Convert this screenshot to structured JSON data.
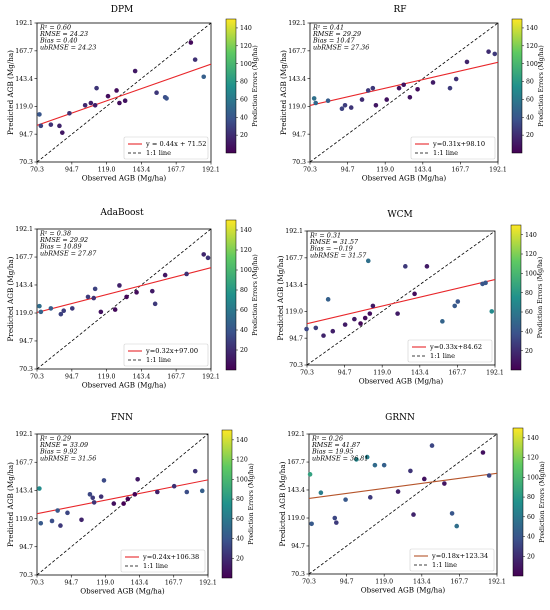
{
  "palette": {
    "fit_line": "#e8262a",
    "fit_line_grnn": "#b5542a",
    "one_to_one": "#000000",
    "colormap": [
      "#440154",
      "#3b528b",
      "#21918c",
      "#5ec962",
      "#fde725"
    ]
  },
  "common": {
    "xlabel": "Observed AGB (Mg/ha)",
    "ylabel": "Predicted AGB (Mg/ha)",
    "ticks": [
      "70.3",
      "94.7",
      "119.0",
      "143.4",
      "167.7",
      "192.1"
    ],
    "tick_values": [
      70.3,
      94.7,
      119.0,
      143.4,
      167.7,
      192.1
    ],
    "colorbar_ticks": [
      "20",
      "40",
      "60",
      "80",
      "100",
      "120",
      "140"
    ],
    "colorbar_tick_values": [
      20,
      40,
      60,
      80,
      100,
      120,
      140
    ],
    "colorbar_label": "Prediction Errors (Mg/ha)",
    "one_to_one_label": "1:1 line"
  },
  "chart_data": [
    {
      "type": "scatter",
      "title": "DPM",
      "stats": [
        "R² = 0.60",
        "RMSE = 24.23",
        "Bias = 0.40",
        "ubRMSE = 24.23"
      ],
      "fit": {
        "slope": 0.44,
        "intercept": 71.52,
        "label": "y = 0.44x + 71.52"
      },
      "xlim": [
        70.3,
        192.1
      ],
      "ylim": [
        70.3,
        192.1
      ],
      "clim": [
        0,
        150
      ],
      "points": [
        {
          "x": 72,
          "y": 112,
          "e": 40
        },
        {
          "x": 73,
          "y": 102,
          "e": 30
        },
        {
          "x": 80,
          "y": 103,
          "e": 22
        },
        {
          "x": 86,
          "y": 102,
          "e": 16
        },
        {
          "x": 88,
          "y": 96,
          "e": 10
        },
        {
          "x": 93,
          "y": 113,
          "e": 22
        },
        {
          "x": 104,
          "y": 120,
          "e": 18
        },
        {
          "x": 108,
          "y": 122,
          "e": 14
        },
        {
          "x": 111,
          "y": 120,
          "e": 12
        },
        {
          "x": 112,
          "y": 135,
          "e": 24
        },
        {
          "x": 120,
          "y": 128,
          "e": 6
        },
        {
          "x": 126,
          "y": 133,
          "e": 6
        },
        {
          "x": 128,
          "y": 122,
          "e": 6
        },
        {
          "x": 132,
          "y": 124,
          "e": 8
        },
        {
          "x": 139,
          "y": 150,
          "e": 11
        },
        {
          "x": 154,
          "y": 131,
          "e": 25
        },
        {
          "x": 160,
          "y": 127,
          "e": 36
        },
        {
          "x": 161,
          "y": 126,
          "e": 38
        },
        {
          "x": 178,
          "y": 175,
          "e": 4
        },
        {
          "x": 181,
          "y": 160,
          "e": 22
        },
        {
          "x": 187,
          "y": 145,
          "e": 45
        }
      ]
    },
    {
      "type": "scatter",
      "title": "RF",
      "stats": [
        "R² = 0.41",
        "RMSE = 29.29",
        "Bias = 10.47",
        "ubRMSE = 27.36"
      ],
      "fit": {
        "slope": 0.31,
        "intercept": 98.1,
        "label": "y=0.31x+98.10"
      },
      "xlim": [
        70.3,
        192.1
      ],
      "ylim": [
        70.3,
        192.1
      ],
      "clim": [
        0,
        150
      ],
      "points": [
        {
          "x": 73,
          "y": 126,
          "e": 55
        },
        {
          "x": 74,
          "y": 122,
          "e": 50
        },
        {
          "x": 82,
          "y": 124,
          "e": 44
        },
        {
          "x": 91,
          "y": 117,
          "e": 30
        },
        {
          "x": 93,
          "y": 120,
          "e": 28
        },
        {
          "x": 97,
          "y": 118,
          "e": 24
        },
        {
          "x": 104,
          "y": 125,
          "e": 20
        },
        {
          "x": 108,
          "y": 133,
          "e": 26
        },
        {
          "x": 111,
          "y": 135,
          "e": 25
        },
        {
          "x": 113,
          "y": 120,
          "e": 10
        },
        {
          "x": 120,
          "y": 125,
          "e": 8
        },
        {
          "x": 128,
          "y": 135,
          "e": 8
        },
        {
          "x": 131,
          "y": 138,
          "e": 8
        },
        {
          "x": 135,
          "y": 127,
          "e": 9
        },
        {
          "x": 140,
          "y": 134,
          "e": 6
        },
        {
          "x": 150,
          "y": 140,
          "e": 12
        },
        {
          "x": 161,
          "y": 135,
          "e": 27
        },
        {
          "x": 165,
          "y": 143,
          "e": 22
        },
        {
          "x": 172,
          "y": 158,
          "e": 16
        },
        {
          "x": 186,
          "y": 167,
          "e": 20
        },
        {
          "x": 190,
          "y": 165,
          "e": 26
        }
      ]
    },
    {
      "type": "scatter",
      "title": "AdaBoost",
      "stats": [
        "R² = 0.38",
        "RMSE = 29.92",
        "Bias = 10.89",
        "ubRMSE = 27.87"
      ],
      "fit": {
        "slope": 0.32,
        "intercept": 97.0,
        "label": "y=0.32x+97.00"
      },
      "xlim": [
        70.3,
        192.1
      ],
      "ylim": [
        70.3,
        192.1
      ],
      "clim": [
        0,
        150
      ],
      "points": [
        {
          "x": 72,
          "y": 125,
          "e": 53
        },
        {
          "x": 73,
          "y": 120,
          "e": 48
        },
        {
          "x": 80,
          "y": 123,
          "e": 44
        },
        {
          "x": 87,
          "y": 118,
          "e": 30
        },
        {
          "x": 89,
          "y": 121,
          "e": 28
        },
        {
          "x": 95,
          "y": 123,
          "e": 26
        },
        {
          "x": 106,
          "y": 133,
          "e": 27
        },
        {
          "x": 110,
          "y": 132,
          "e": 22
        },
        {
          "x": 111,
          "y": 140,
          "e": 30
        },
        {
          "x": 115,
          "y": 120,
          "e": 8
        },
        {
          "x": 125,
          "y": 122,
          "e": 4
        },
        {
          "x": 128,
          "y": 143,
          "e": 15
        },
        {
          "x": 133,
          "y": 133,
          "e": 3
        },
        {
          "x": 140,
          "y": 137,
          "e": 5
        },
        {
          "x": 151,
          "y": 138,
          "e": 12
        },
        {
          "x": 153,
          "y": 127,
          "e": 26
        },
        {
          "x": 160,
          "y": 152,
          "e": 10
        },
        {
          "x": 175,
          "y": 153,
          "e": 22
        },
        {
          "x": 187,
          "y": 170,
          "e": 17
        },
        {
          "x": 190,
          "y": 167,
          "e": 23
        }
      ]
    },
    {
      "type": "scatter",
      "title": "WCM",
      "stats": [
        "R² = 0.31",
        "RMSE = 31.57",
        "Bias = −0.19",
        "ubRMSE = 31.57"
      ],
      "fit": {
        "slope": 0.33,
        "intercept": 84.62,
        "label": "y=0.33x+84.62"
      },
      "xlim": [
        70.3,
        192.1
      ],
      "ylim": [
        70.3,
        192.1
      ],
      "clim": [
        0,
        150
      ],
      "points": [
        {
          "x": 70,
          "y": 103,
          "e": 32
        },
        {
          "x": 76,
          "y": 104,
          "e": 28
        },
        {
          "x": 81,
          "y": 97,
          "e": 16
        },
        {
          "x": 84,
          "y": 130,
          "e": 46
        },
        {
          "x": 87,
          "y": 101,
          "e": 14
        },
        {
          "x": 95,
          "y": 107,
          "e": 12
        },
        {
          "x": 101,
          "y": 112,
          "e": 11
        },
        {
          "x": 105,
          "y": 108,
          "e": 3
        },
        {
          "x": 108,
          "y": 113,
          "e": 5
        },
        {
          "x": 110,
          "y": 165,
          "e": 55
        },
        {
          "x": 111,
          "y": 117,
          "e": 6
        },
        {
          "x": 113,
          "y": 124,
          "e": 11
        },
        {
          "x": 129,
          "y": 117,
          "e": 12
        },
        {
          "x": 134,
          "y": 160,
          "e": 26
        },
        {
          "x": 140,
          "y": 135,
          "e": 5
        },
        {
          "x": 148,
          "y": 160,
          "e": 12
        },
        {
          "x": 158,
          "y": 110,
          "e": 48
        },
        {
          "x": 166,
          "y": 124,
          "e": 42
        },
        {
          "x": 168,
          "y": 128,
          "e": 40
        },
        {
          "x": 184,
          "y": 144,
          "e": 40
        },
        {
          "x": 186,
          "y": 145,
          "e": 41
        },
        {
          "x": 190,
          "y": 119,
          "e": 71
        }
      ]
    },
    {
      "type": "scatter",
      "title": "FNN",
      "stats": [
        "R² = 0.29",
        "RMSE = 33.09",
        "Bias = 9.92",
        "ubRMSE = 31.56"
      ],
      "fit": {
        "slope": 0.24,
        "intercept": 106.38,
        "label": "y=0.24x+106.38"
      },
      "xlim": [
        70.3,
        192.1
      ],
      "ylim": [
        70.3,
        192.1
      ],
      "clim": [
        0,
        150
      ],
      "points": [
        {
          "x": 72,
          "y": 145,
          "e": 72
        },
        {
          "x": 73,
          "y": 115,
          "e": 42
        },
        {
          "x": 81,
          "y": 117,
          "e": 36
        },
        {
          "x": 85,
          "y": 126,
          "e": 41
        },
        {
          "x": 87,
          "y": 113,
          "e": 26
        },
        {
          "x": 92,
          "y": 124,
          "e": 32
        },
        {
          "x": 102,
          "y": 118,
          "e": 16
        },
        {
          "x": 108,
          "y": 140,
          "e": 32
        },
        {
          "x": 110,
          "y": 137,
          "e": 27
        },
        {
          "x": 111,
          "y": 133,
          "e": 22
        },
        {
          "x": 116,
          "y": 138,
          "e": 22
        },
        {
          "x": 118,
          "y": 152,
          "e": 34
        },
        {
          "x": 125,
          "y": 132,
          "e": 7
        },
        {
          "x": 132,
          "y": 132,
          "e": 0
        },
        {
          "x": 135,
          "y": 136,
          "e": 1
        },
        {
          "x": 140,
          "y": 140,
          "e": 0
        },
        {
          "x": 142,
          "y": 153,
          "e": 11
        },
        {
          "x": 156,
          "y": 142,
          "e": 14
        },
        {
          "x": 168,
          "y": 147,
          "e": 21
        },
        {
          "x": 177,
          "y": 142,
          "e": 35
        },
        {
          "x": 183,
          "y": 160,
          "e": 23
        },
        {
          "x": 188,
          "y": 143,
          "e": 45
        }
      ]
    },
    {
      "type": "scatter",
      "title": "GRNN",
      "stats": [
        "R² = 0.26",
        "RMSE = 41.87",
        "Bias = 19.95",
        "ubRMSE = 36.81"
      ],
      "fit": {
        "slope": 0.18,
        "intercept": 123.34,
        "label": "y=0.18x+123.34"
      },
      "xlim": [
        70.3,
        192.1
      ],
      "ylim": [
        70.3,
        192.1
      ],
      "clim": [
        0,
        150
      ],
      "points": [
        {
          "x": 71,
          "y": 157,
          "e": 86
        },
        {
          "x": 72,
          "y": 114,
          "e": 42
        },
        {
          "x": 78,
          "y": 141,
          "e": 63
        },
        {
          "x": 87,
          "y": 119,
          "e": 32
        },
        {
          "x": 88,
          "y": 115,
          "e": 27
        },
        {
          "x": 94,
          "y": 135,
          "e": 41
        },
        {
          "x": 101,
          "y": 170,
          "e": 69
        },
        {
          "x": 108,
          "y": 172,
          "e": 64
        },
        {
          "x": 110,
          "y": 137,
          "e": 27
        },
        {
          "x": 113,
          "y": 165,
          "e": 52
        },
        {
          "x": 119,
          "y": 165,
          "e": 46
        },
        {
          "x": 128,
          "y": 142,
          "e": 14
        },
        {
          "x": 136,
          "y": 160,
          "e": 24
        },
        {
          "x": 138,
          "y": 122,
          "e": 16
        },
        {
          "x": 145,
          "y": 153,
          "e": 8
        },
        {
          "x": 150,
          "y": 182,
          "e": 32
        },
        {
          "x": 158,
          "y": 149,
          "e": 9
        },
        {
          "x": 163,
          "y": 123,
          "e": 40
        },
        {
          "x": 166,
          "y": 112,
          "e": 54
        },
        {
          "x": 183,
          "y": 176,
          "e": 7
        },
        {
          "x": 187,
          "y": 156,
          "e": 31
        }
      ]
    }
  ]
}
